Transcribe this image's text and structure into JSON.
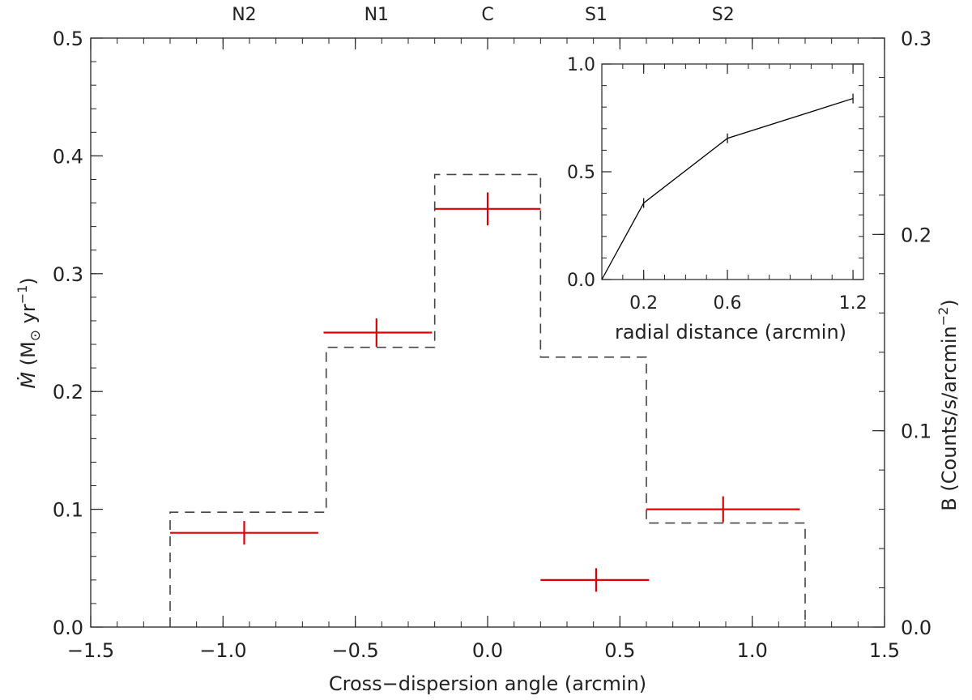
{
  "chart_data": [
    {
      "type": "scatter",
      "xlabel": "Cross−dispersion angle (arcmin)",
      "ylabel_left": "Ṁ (M⊙ yr⁻¹)",
      "ylabel_left_parts": {
        "symbol": "Ṁ",
        "unit_open": " (M",
        "sun": "⊙",
        "unit_mid": " yr",
        "exp": "−1",
        "unit_close": ")"
      },
      "ylabel_right": "B (Counts/s/arcmin⁻²)",
      "ylabel_right_parts": {
        "main": "B (Counts/s/arcmin",
        "exp": "−2",
        "close": ")"
      },
      "xlim": [
        -1.5,
        1.5
      ],
      "ylim_left": [
        0.0,
        0.5
      ],
      "ylim_right": [
        0.0,
        0.3
      ],
      "x_ticks": [
        "−1.5",
        "−1.0",
        "−0.5",
        "0.0",
        "0.5",
        "1.0",
        "1.5"
      ],
      "x_tick_values": [
        -1.5,
        -1.0,
        -0.5,
        0.0,
        0.5,
        1.0,
        1.5
      ],
      "y_left_ticks": [
        "0.0",
        "0.1",
        "0.2",
        "0.3",
        "0.4",
        "0.5"
      ],
      "y_left_tick_values": [
        0.0,
        0.1,
        0.2,
        0.3,
        0.4,
        0.5
      ],
      "y_right_ticks": [
        "0.0",
        "0.1",
        "0.2",
        "0.3"
      ],
      "y_right_tick_values": [
        0.0,
        0.1,
        0.2,
        0.3
      ],
      "regions": [
        {
          "label": "N2",
          "x": -0.92
        },
        {
          "label": "N1",
          "x": -0.42
        },
        {
          "label": "C",
          "x": 0.0
        },
        {
          "label": "S1",
          "x": 0.41
        },
        {
          "label": "S2",
          "x": 0.89
        }
      ],
      "series": [
        {
          "marker": "red-crosses",
          "color": "#dd0000",
          "axis": "left",
          "points": [
            {
              "x": -0.92,
              "xmin": -1.2,
              "xmax": -0.64,
              "y": 0.08,
              "yerr": 0.01
            },
            {
              "x": -0.42,
              "xmin": -0.62,
              "xmax": -0.21,
              "y": 0.25,
              "yerr": 0.012
            },
            {
              "x": 0.0,
              "xmin": -0.2,
              "xmax": 0.2,
              "y": 0.355,
              "yerr": 0.014
            },
            {
              "x": 0.41,
              "xmin": 0.2,
              "xmax": 0.61,
              "y": 0.04,
              "yerr": 0.01
            },
            {
              "x": 0.89,
              "xmin": 0.6,
              "xmax": 1.18,
              "y": 0.1,
              "yerr": 0.011
            }
          ]
        },
        {
          "marker": "dashed-histogram",
          "color": "#444444",
          "axis": "right",
          "bins": [
            {
              "x0": -1.2,
              "x1": -0.61,
              "y": 0.0585
            },
            {
              "x0": -0.61,
              "x1": -0.2,
              "y": 0.1425
            },
            {
              "x0": -0.2,
              "x1": 0.2,
              "y": 0.2305
            },
            {
              "x0": 0.2,
              "x1": 0.6,
              "y": 0.1375
            },
            {
              "x0": 0.6,
              "x1": 1.2,
              "y": 0.053
            }
          ]
        }
      ]
    },
    {
      "type": "line",
      "xlabel": "radial distance (arcmin)",
      "ylabel": "",
      "xlim": [
        0.0,
        1.25
      ],
      "ylim": [
        0.0,
        1.0
      ],
      "x_ticks": [
        "0.2",
        "0.6",
        "1.2"
      ],
      "x_tick_values": [
        0.2,
        0.6,
        1.2
      ],
      "y_ticks": [
        "0.0",
        "0.5",
        "1.0"
      ],
      "y_tick_values": [
        0.0,
        0.5,
        1.0
      ],
      "color": "#000000",
      "points": [
        {
          "x": 0.0,
          "y": 0.0
        },
        {
          "x": 0.2,
          "y": 0.355
        },
        {
          "x": 0.6,
          "y": 0.655
        },
        {
          "x": 1.2,
          "y": 0.84
        }
      ]
    }
  ]
}
